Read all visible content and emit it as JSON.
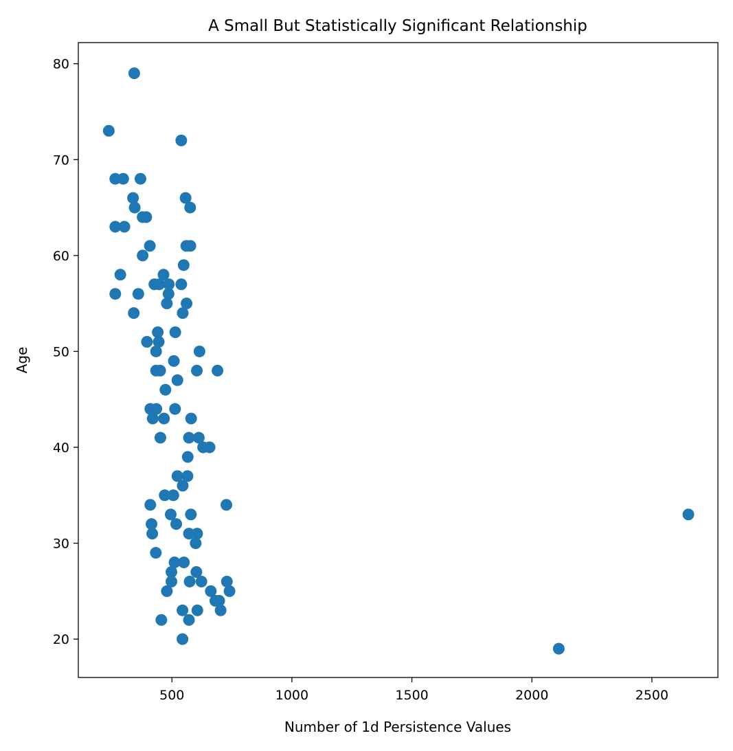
{
  "chart_data": {
    "type": "scatter",
    "title": "A Small But Statistically Significant Relationship",
    "xlabel": "Number of 1d Persistence Values",
    "ylabel": "Age",
    "xlim": [
      110,
      2775
    ],
    "ylim": [
      16,
      82.2
    ],
    "xticks": [
      500,
      1000,
      1500,
      2000,
      2500
    ],
    "yticks": [
      20,
      30,
      40,
      50,
      60,
      70,
      80
    ],
    "grid": false,
    "color": "#1f77b4",
    "points": [
      [
        343,
        79
      ],
      [
        237,
        73
      ],
      [
        539,
        72
      ],
      [
        264,
        68
      ],
      [
        297,
        68
      ],
      [
        369,
        68
      ],
      [
        338,
        66
      ],
      [
        557,
        66
      ],
      [
        345,
        65
      ],
      [
        576,
        65
      ],
      [
        378,
        64
      ],
      [
        393,
        64
      ],
      [
        264,
        63
      ],
      [
        302,
        63
      ],
      [
        408,
        61
      ],
      [
        560,
        61
      ],
      [
        577,
        61
      ],
      [
        378,
        60
      ],
      [
        549,
        59
      ],
      [
        285,
        58
      ],
      [
        465,
        58
      ],
      [
        264,
        56
      ],
      [
        360,
        56
      ],
      [
        486,
        56
      ],
      [
        427,
        57
      ],
      [
        447,
        57
      ],
      [
        487,
        57
      ],
      [
        539,
        57
      ],
      [
        479,
        55
      ],
      [
        561,
        55
      ],
      [
        341,
        54
      ],
      [
        545,
        54
      ],
      [
        441,
        52
      ],
      [
        514,
        52
      ],
      [
        396,
        51
      ],
      [
        445,
        51
      ],
      [
        434,
        50
      ],
      [
        615,
        50
      ],
      [
        508,
        49
      ],
      [
        434,
        48
      ],
      [
        451,
        48
      ],
      [
        604,
        48
      ],
      [
        690,
        48
      ],
      [
        523,
        47
      ],
      [
        473,
        46
      ],
      [
        410,
        44
      ],
      [
        435,
        44
      ],
      [
        513,
        44
      ],
      [
        420,
        43
      ],
      [
        467,
        43
      ],
      [
        580,
        43
      ],
      [
        452,
        41
      ],
      [
        571,
        41
      ],
      [
        612,
        41
      ],
      [
        630,
        40
      ],
      [
        657,
        40
      ],
      [
        566,
        39
      ],
      [
        523,
        37
      ],
      [
        565,
        37
      ],
      [
        545,
        36
      ],
      [
        470,
        35
      ],
      [
        506,
        35
      ],
      [
        410,
        34
      ],
      [
        727,
        34
      ],
      [
        495,
        33
      ],
      [
        579,
        33
      ],
      [
        2652,
        33
      ],
      [
        415,
        32
      ],
      [
        518,
        32
      ],
      [
        418,
        31
      ],
      [
        571,
        31
      ],
      [
        605,
        31
      ],
      [
        599,
        30
      ],
      [
        433,
        29
      ],
      [
        511,
        28
      ],
      [
        550,
        28
      ],
      [
        498,
        27
      ],
      [
        602,
        27
      ],
      [
        498,
        26
      ],
      [
        574,
        26
      ],
      [
        623,
        26
      ],
      [
        729,
        26
      ],
      [
        479,
        25
      ],
      [
        662,
        25
      ],
      [
        740,
        25
      ],
      [
        681,
        24
      ],
      [
        697,
        24
      ],
      [
        544,
        23
      ],
      [
        606,
        23
      ],
      [
        703,
        23
      ],
      [
        456,
        22
      ],
      [
        571,
        22
      ],
      [
        544,
        20
      ],
      [
        2112,
        19
      ]
    ]
  }
}
